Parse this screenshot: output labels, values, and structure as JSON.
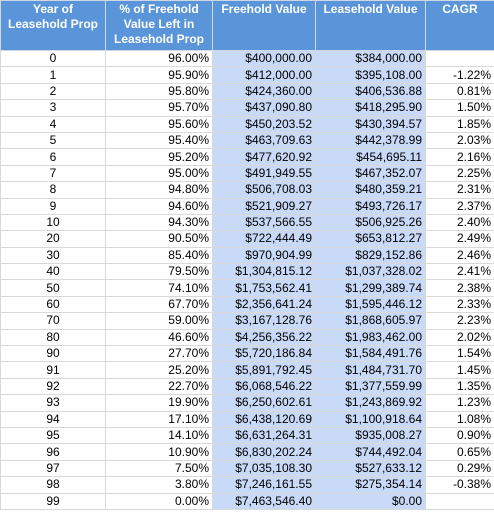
{
  "table": {
    "headers": [
      "Year of Leasehold Prop",
      "% of Freehold Value Left in Leasehold Prop",
      "Freehold Value",
      "Leasehold Value",
      "CAGR"
    ],
    "rows": [
      [
        "0",
        "96.00%",
        "$400,000.00",
        "$384,000.00"
      ],
      [
        "1",
        "95.90%",
        "$412,000.00",
        "$395,108.00",
        "-1.22%"
      ],
      [
        "2",
        "95.80%",
        "$424,360.00",
        "$406,536.88",
        "0.81%"
      ],
      [
        "3",
        "95.70%",
        "$437,090.80",
        "$418,295.90",
        "1.50%"
      ],
      [
        "4",
        "95.60%",
        "$450,203.52",
        "$430,394.57",
        "1.85%"
      ],
      [
        "5",
        "95.40%",
        "$463,709.63",
        "$442,378.99",
        "2.03%"
      ],
      [
        "6",
        "95.20%",
        "$477,620.92",
        "$454,695.11",
        "2.16%"
      ],
      [
        "7",
        "95.00%",
        "$491,949.55",
        "$467,352.07",
        "2.25%"
      ],
      [
        "8",
        "94.80%",
        "$506,708.03",
        "$480,359.21",
        "2.31%"
      ],
      [
        "9",
        "94.60%",
        "$521,909.27",
        "$493,726.17",
        "2.37%"
      ],
      [
        "10",
        "94.30%",
        "$537,566.55",
        "$506,925.26",
        "2.40%"
      ],
      [
        "20",
        "90.50%",
        "$722,444.49",
        "$653,812.27",
        "2.49%"
      ],
      [
        "30",
        "85.40%",
        "$970,904.99",
        "$829,152.86",
        "2.46%"
      ],
      [
        "40",
        "79.50%",
        "$1,304,815.12",
        "$1,037,328.02",
        "2.41%"
      ],
      [
        "50",
        "74.10%",
        "$1,753,562.41",
        "$1,299,389.74",
        "2.38%"
      ],
      [
        "60",
        "67.70%",
        "$2,356,641.24",
        "$1,595,446.12",
        "2.33%"
      ],
      [
        "70",
        "59.00%",
        "$3,167,128.76",
        "$1,868,605.97",
        "2.23%"
      ],
      [
        "80",
        "46.60%",
        "$4,256,356.22",
        "$1,983,462.00",
        "2.02%"
      ],
      [
        "90",
        "27.70%",
        "$5,720,186.84",
        "$1,584,491.76",
        "1.54%"
      ],
      [
        "91",
        "25.20%",
        "$5,891,792.45",
        "$1,484,731.70",
        "1.45%"
      ],
      [
        "92",
        "22.70%",
        "$6,068,546.22",
        "$1,377,559.99",
        "1.35%"
      ],
      [
        "93",
        "19.90%",
        "$6,250,602.61",
        "$1,243,869.92",
        "1.23%"
      ],
      [
        "94",
        "17.10%",
        "$6,438,120.69",
        "$1,100,918.64",
        "1.08%"
      ],
      [
        "95",
        "14.10%",
        "$6,631,264.31",
        "$935,008.27",
        "0.90%"
      ],
      [
        "96",
        "10.90%",
        "$6,830,202.24",
        "$744,492.04",
        "0.65%"
      ],
      [
        "97",
        "7.50%",
        "$7,035,108.30",
        "$527,633.12",
        "0.29%"
      ],
      [
        "98",
        "3.80%",
        "$7,246,161.55",
        "$275,354.14",
        "-0.38%"
      ],
      [
        "99",
        "0.00%",
        "$7,463,546.40",
        "$0.00"
      ]
    ]
  }
}
